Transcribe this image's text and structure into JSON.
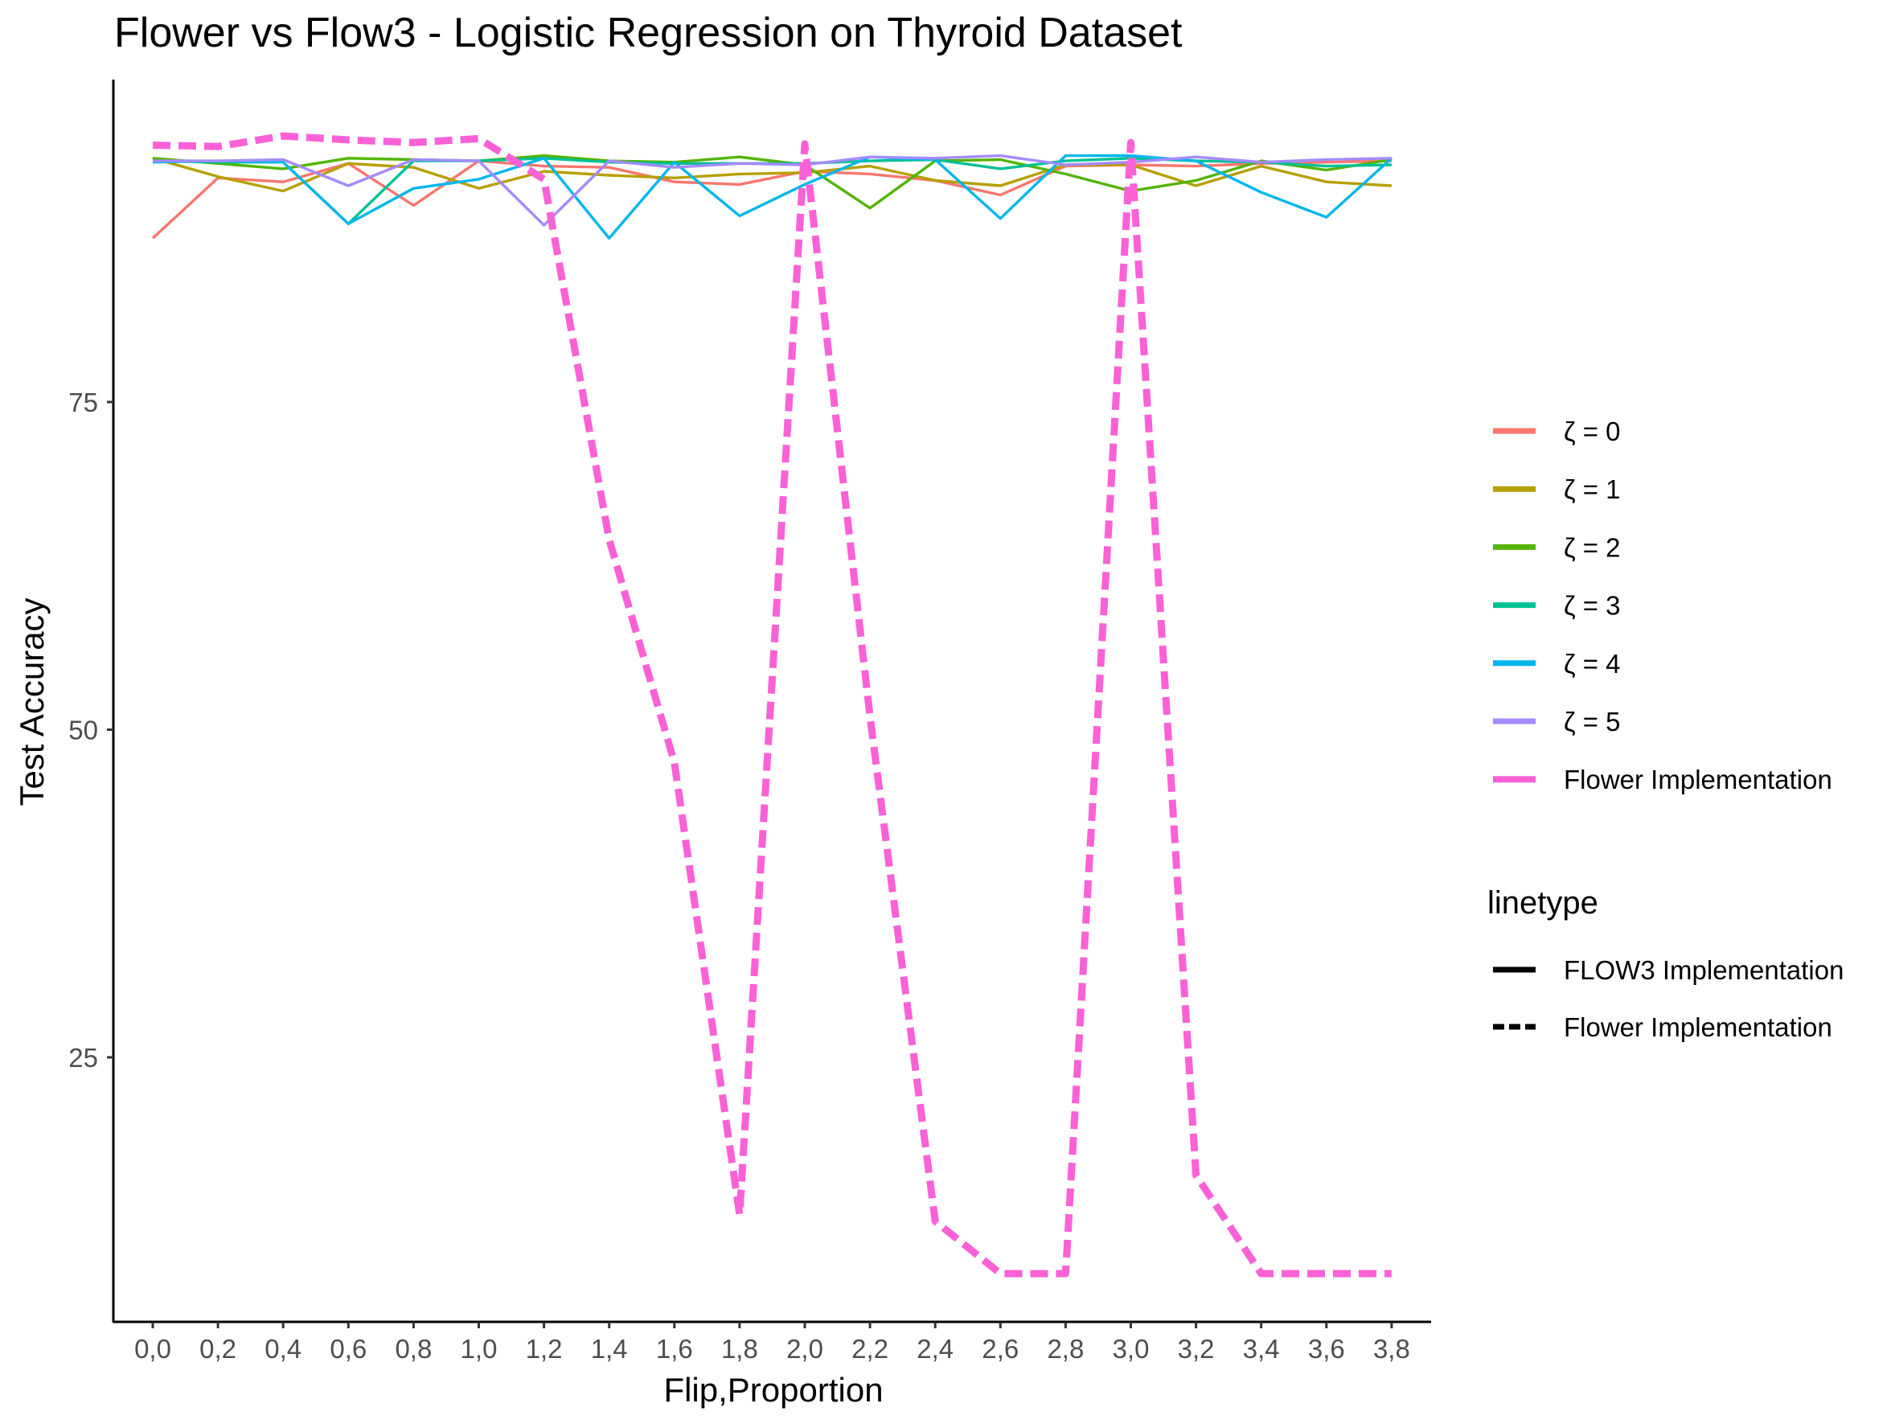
{
  "chart_data": {
    "type": "line",
    "title": "Flower vs Flow3 - Logistic Regression on Thyroid Dataset",
    "xlabel": "Flip,Proportion",
    "ylabel": "Test Accuracy",
    "categories": [
      "0,0",
      "0,2",
      "0,4",
      "0,6",
      "0,8",
      "1,0",
      "1,2",
      "1,4",
      "1,6",
      "1,8",
      "2,0",
      "2,2",
      "2,4",
      "2,6",
      "2,8",
      "3,0",
      "3,2",
      "3,4",
      "3,6",
      "3,8"
    ],
    "ylim": [
      0,
      100
    ],
    "yticks": [
      25,
      50,
      75
    ],
    "grid": false,
    "legend_position": "right",
    "series": [
      {
        "name": "ζ  = 0",
        "color": "#F8766D",
        "linetype": "solid",
        "values": [
          87.5,
          92.1,
          91.8,
          93.2,
          90.0,
          93.4,
          93.0,
          92.9,
          91.8,
          91.6,
          92.6,
          92.4,
          91.9,
          90.8,
          93.0,
          93.1,
          93.0,
          93.2,
          93.3,
          93.4
        ]
      },
      {
        "name": "ζ  = 1",
        "color": "#B79F00",
        "linetype": "solid",
        "values": [
          93.6,
          92.2,
          91.1,
          93.2,
          92.9,
          91.3,
          92.6,
          92.3,
          92.1,
          92.4,
          92.5,
          93.0,
          91.9,
          91.5,
          93.1,
          93.1,
          91.5,
          93.0,
          91.8,
          91.5
        ]
      },
      {
        "name": "ζ  = 2",
        "color": "#53B400",
        "linetype": "solid",
        "values": [
          93.6,
          93.2,
          92.8,
          93.6,
          93.5,
          93.4,
          93.8,
          93.4,
          93.3,
          93.7,
          93.1,
          89.8,
          93.4,
          93.5,
          92.4,
          91.1,
          91.9,
          93.4,
          92.7,
          93.5
        ]
      },
      {
        "name": "ζ  = 3",
        "color": "#00C094",
        "linetype": "solid",
        "values": [
          93.4,
          93.3,
          93.3,
          88.6,
          93.4,
          93.4,
          93.6,
          93.3,
          93.2,
          93.2,
          93.2,
          93.4,
          93.5,
          92.8,
          93.4,
          93.6,
          93.4,
          93.3,
          93.0,
          93.1
        ]
      },
      {
        "name": "ζ  = 4",
        "color": "#00B6EB",
        "linetype": "solid",
        "values": [
          93.3,
          93.4,
          93.3,
          88.6,
          91.3,
          92.0,
          93.6,
          87.5,
          93.3,
          89.2,
          91.6,
          93.7,
          93.5,
          89.0,
          93.8,
          93.8,
          93.4,
          91.0,
          89.1,
          93.6
        ]
      },
      {
        "name": "ζ  = 5",
        "color": "#A58AFF",
        "linetype": "solid",
        "values": [
          93.4,
          93.4,
          93.5,
          91.5,
          93.5,
          93.4,
          88.5,
          93.4,
          92.9,
          93.2,
          93.1,
          93.7,
          93.6,
          93.8,
          93.1,
          93.3,
          93.7,
          93.3,
          93.5,
          93.6
        ]
      },
      {
        "name": "Flower Implementation",
        "color": "#FB61D7",
        "linetype": "dashed",
        "values": [
          94.6,
          94.5,
          95.3,
          95.0,
          94.8,
          95.1,
          92.0,
          64.5,
          47.5,
          13.0,
          94.7,
          51.0,
          12.5,
          8.5,
          8.5,
          94.8,
          16.0,
          8.5,
          8.5,
          8.5
        ]
      }
    ],
    "legend_title_2": "linetype",
    "legend_2": [
      {
        "label": "FLOW3 Implementation",
        "linetype": "solid"
      },
      {
        "label": "Flower Implementation",
        "linetype": "dashed"
      }
    ]
  }
}
